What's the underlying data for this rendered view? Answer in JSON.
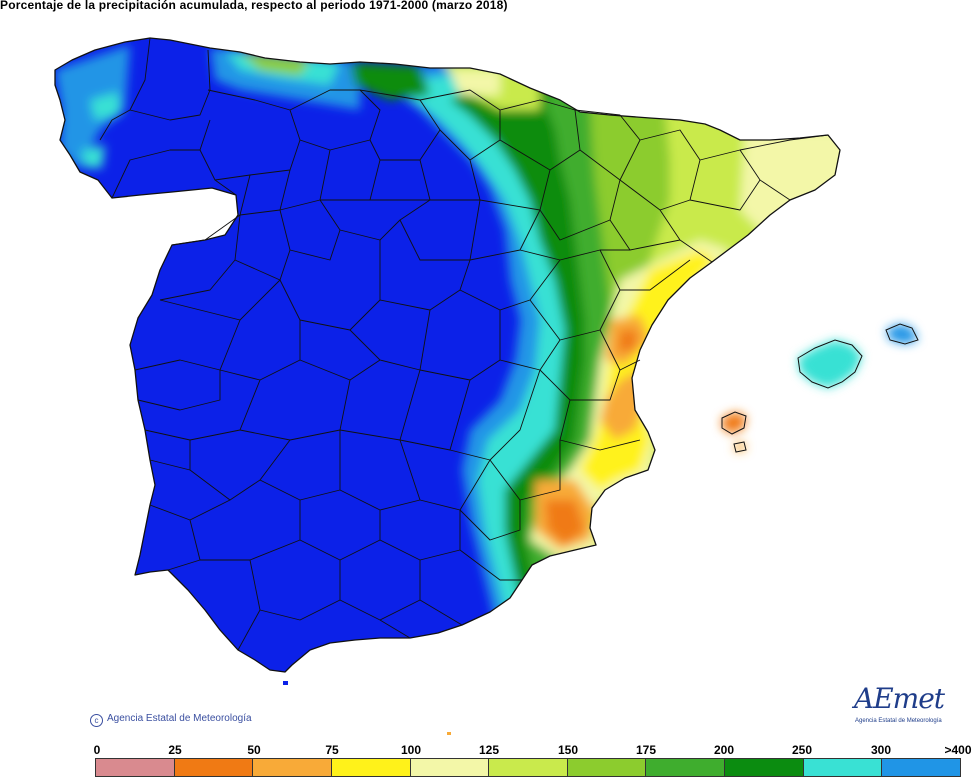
{
  "title": "Porcentaje de la precipitación acumulada, respecto al periodo 1971-2000 (marzo 2018)",
  "copyright": "Agencia Estatal de Meteorología",
  "logo": {
    "word": "AEmet",
    "subtitle": "Agencia Estatal de Meteorología"
  },
  "legend": {
    "labels": [
      "0",
      "25",
      "50",
      "75",
      "100",
      "125",
      "150",
      "175",
      "200",
      "250",
      "300",
      ">400"
    ],
    "colors": [
      "#d98a8f",
      "#f07a14",
      "#f8aa38",
      "#fff21a",
      "#f3f7a8",
      "#c9ea4c",
      "#8ccc2e",
      "#3fad2e",
      "#0b8c10",
      "#39e1d4",
      "#2095e6",
      "#0c21e8"
    ]
  },
  "colors": {
    "ocean": "#ffffff",
    "border": "#111111",
    "accent_text": "#3a4fa0"
  }
}
